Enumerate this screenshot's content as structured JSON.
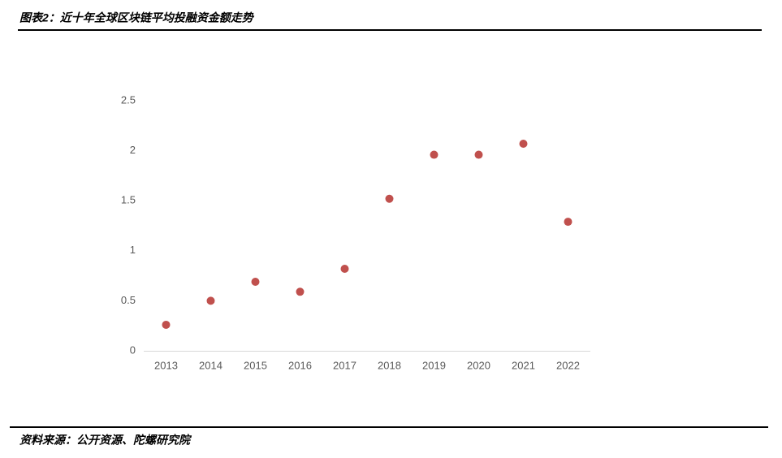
{
  "chart_data": {
    "type": "scatter",
    "title": "图表2：近十年全球区块链平均投融资金额走势",
    "source": "资料来源：公开资源、陀螺研究院",
    "categories": [
      "2013",
      "2014",
      "2015",
      "2016",
      "2017",
      "2018",
      "2019",
      "2020",
      "2021",
      "2022"
    ],
    "values": [
      0.26,
      0.5,
      0.69,
      0.59,
      0.82,
      1.52,
      1.96,
      1.96,
      2.07,
      1.29
    ],
    "color": "#c0504d",
    "ylim": [
      0,
      2.5
    ],
    "yticks": [
      0,
      0.5,
      1,
      1.5,
      2,
      2.5
    ],
    "grid": false
  }
}
